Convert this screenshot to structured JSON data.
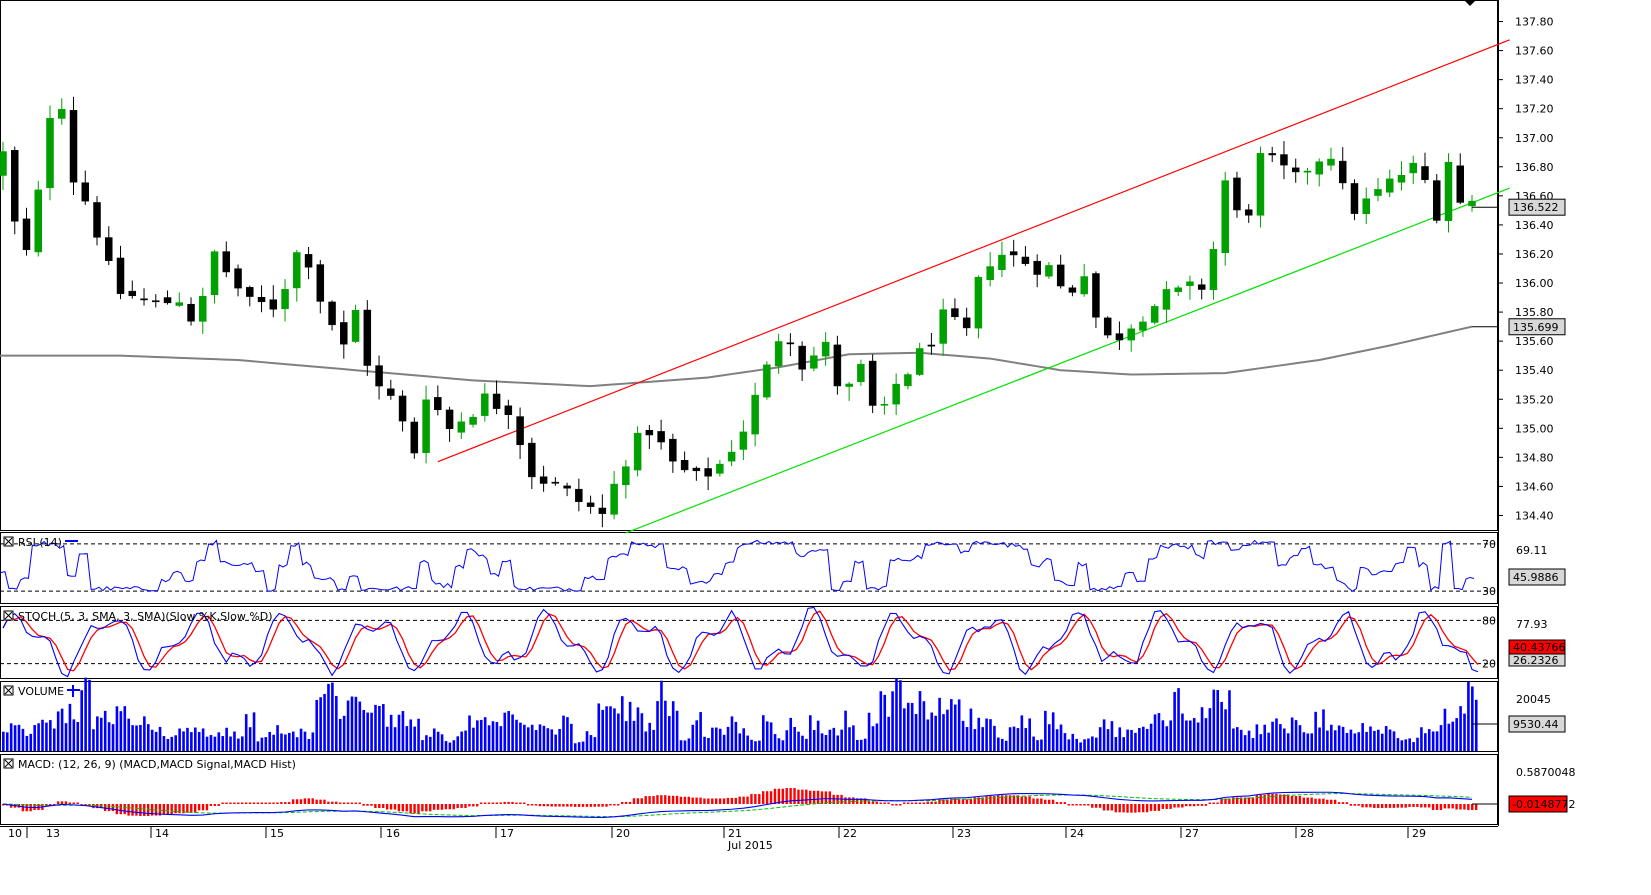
{
  "chart_data": [
    {
      "type": "candlestick",
      "panel": "price",
      "ylim": [
        134.3,
        137.9
      ],
      "y_ticks": [
        "137.80",
        "137.60",
        "137.40",
        "137.20",
        "137.00",
        "136.80",
        "136.60",
        "136.40",
        "136.20",
        "136.00",
        "135.80",
        "135.60",
        "135.40",
        "135.20",
        "135.00",
        "134.80",
        "134.60",
        "134.40"
      ],
      "x_day_labels": [
        "10",
        "13",
        "14",
        "15",
        "16",
        "17",
        "20",
        "21",
        "22",
        "23",
        "24",
        "27",
        "28",
        "29"
      ],
      "x_month_label": "Jul 2015",
      "last_price_label": "136.522",
      "ma_label": "135.699",
      "anchors": [
        {
          "t": 0,
          "v": 136.75
        },
        {
          "t": 1.5,
          "v": 136.95
        },
        {
          "t": 2.5,
          "v": 135.85
        },
        {
          "t": 3.5,
          "v": 136.55
        },
        {
          "t": 4.5,
          "v": 136.65
        },
        {
          "t": 5.5,
          "v": 137.7
        },
        {
          "t": 6.5,
          "v": 136.8
        },
        {
          "t": 8.5,
          "v": 136.5
        },
        {
          "t": 10.5,
          "v": 135.95
        },
        {
          "t": 14,
          "v": 135.85
        },
        {
          "t": 16,
          "v": 135.9
        },
        {
          "t": 17.5,
          "v": 135.7
        },
        {
          "t": 19,
          "v": 136.2
        },
        {
          "t": 22,
          "v": 135.85
        },
        {
          "t": 24,
          "v": 135.85
        },
        {
          "t": 25,
          "v": 136.0
        },
        {
          "t": 26.5,
          "v": 136.3
        },
        {
          "t": 28,
          "v": 135.9
        },
        {
          "t": 30,
          "v": 135.55
        },
        {
          "t": 31,
          "v": 135.8
        },
        {
          "t": 32.5,
          "v": 135.3
        },
        {
          "t": 34,
          "v": 135.2
        },
        {
          "t": 36,
          "v": 134.85
        },
        {
          "t": 37,
          "v": 135.25
        },
        {
          "t": 39,
          "v": 135.0
        },
        {
          "t": 42,
          "v": 135.2
        },
        {
          "t": 44,
          "v": 135.15
        },
        {
          "t": 46,
          "v": 134.7
        },
        {
          "t": 48,
          "v": 134.6
        },
        {
          "t": 50,
          "v": 134.5
        },
        {
          "t": 52,
          "v": 134.4
        },
        {
          "t": 54,
          "v": 134.8
        },
        {
          "t": 56,
          "v": 135.0
        },
        {
          "t": 58,
          "v": 134.75
        },
        {
          "t": 60,
          "v": 134.65
        },
        {
          "t": 62,
          "v": 134.75
        },
        {
          "t": 64,
          "v": 135.0
        },
        {
          "t": 66,
          "v": 135.4
        },
        {
          "t": 67.5,
          "v": 135.75
        },
        {
          "t": 69,
          "v": 135.45
        },
        {
          "t": 71,
          "v": 135.55
        },
        {
          "t": 72.5,
          "v": 135.2
        },
        {
          "t": 74,
          "v": 135.4
        },
        {
          "t": 75.5,
          "v": 135.0
        },
        {
          "t": 77,
          "v": 135.3
        },
        {
          "t": 79,
          "v": 135.5
        },
        {
          "t": 81,
          "v": 135.75
        },
        {
          "t": 83,
          "v": 135.65
        },
        {
          "t": 84.5,
          "v": 136.15
        },
        {
          "t": 86,
          "v": 136.2
        },
        {
          "t": 88,
          "v": 136.15
        },
        {
          "t": 90,
          "v": 136.1
        },
        {
          "t": 91.5,
          "v": 135.9
        },
        {
          "t": 93,
          "v": 136.1
        },
        {
          "t": 94.5,
          "v": 135.6
        },
        {
          "t": 96,
          "v": 135.65
        },
        {
          "t": 98,
          "v": 135.8
        },
        {
          "t": 100,
          "v": 135.9
        },
        {
          "t": 102,
          "v": 135.95
        },
        {
          "t": 103.5,
          "v": 136.0
        },
        {
          "t": 105,
          "v": 136.7
        },
        {
          "t": 106.5,
          "v": 136.35
        },
        {
          "t": 108,
          "v": 136.85
        },
        {
          "t": 109.5,
          "v": 136.8
        },
        {
          "t": 111,
          "v": 136.7
        },
        {
          "t": 112.5,
          "v": 136.85
        },
        {
          "t": 114,
          "v": 136.9
        },
        {
          "t": 115.5,
          "v": 136.5
        },
        {
          "t": 117,
          "v": 136.55
        },
        {
          "t": 118.5,
          "v": 136.65
        },
        {
          "t": 120,
          "v": 136.75
        },
        {
          "t": 121.5,
          "v": 136.8
        },
        {
          "t": 123,
          "v": 136.5
        },
        {
          "t": 124,
          "v": 136.85
        },
        {
          "t": 125,
          "v": 136.55
        }
      ],
      "ma_anchors": [
        {
          "t": 0,
          "v": 135.5
        },
        {
          "t": 10,
          "v": 135.5
        },
        {
          "t": 20,
          "v": 135.47
        },
        {
          "t": 30,
          "v": 135.4
        },
        {
          "t": 40,
          "v": 135.33
        },
        {
          "t": 50,
          "v": 135.29
        },
        {
          "t": 60,
          "v": 135.35
        },
        {
          "t": 66,
          "v": 135.42
        },
        {
          "t": 72,
          "v": 135.51
        },
        {
          "t": 78,
          "v": 135.52
        },
        {
          "t": 84,
          "v": 135.48
        },
        {
          "t": 90,
          "v": 135.4
        },
        {
          "t": 96,
          "v": 135.37
        },
        {
          "t": 104,
          "v": 135.38
        },
        {
          "t": 112,
          "v": 135.47
        },
        {
          "t": 118,
          "v": 135.57
        },
        {
          "t": 125,
          "v": 135.7
        }
      ],
      "trendlines": [
        {
          "name": "channel-top",
          "color": "#ff0000",
          "from": {
            "t": 37,
            "v": 134.77
          },
          "to": {
            "t": 126.5,
            "v": 137.62
          }
        },
        {
          "name": "channel-bottom",
          "color": "#00e000",
          "from": {
            "t": 53,
            "v": 134.28
          },
          "to": {
            "t": 126.5,
            "v": 136.6
          }
        }
      ]
    },
    {
      "type": "line",
      "panel": "rsi",
      "title": "RSI (14)",
      "levels": [
        "70",
        "30"
      ],
      "value_label": "69.11",
      "last_label": "45.9886",
      "ylim": [
        20,
        80
      ],
      "color": "#0000ff"
    },
    {
      "type": "line",
      "panel": "stoch",
      "title": "STOCH (5, 3, SMA, 3, SMA)",
      "legend": [
        {
          "name": "Slow %K",
          "color": "#0000ff"
        },
        {
          "name": "Slow %D",
          "color": "#ff0000"
        }
      ],
      "levels": [
        "80",
        "20"
      ],
      "value_label": "77.93",
      "last_label_k": "40.43766",
      "last_label_d": "26.2326",
      "ylim": [
        0,
        100
      ]
    },
    {
      "type": "bar",
      "panel": "volume",
      "title": "VOLUME",
      "value_label": "20045",
      "last_label": "9530.44",
      "color": "#0000ff"
    },
    {
      "type": "line",
      "panel": "macd",
      "title": "MACD: (12, 26, 9)",
      "legend": [
        {
          "name": "MACD",
          "color": "#0000ff"
        },
        {
          "name": "MACD Signal",
          "color": "#00c000"
        },
        {
          "name": "MACD Hist",
          "color": "#ff0000"
        }
      ],
      "value_label": "0.5870048",
      "last_label": "-0.0148772"
    }
  ],
  "colors": {
    "bull": "#00a000",
    "bear": "#000000",
    "ma": "#808080",
    "label_box": "#d8d8d8",
    "last_label_red": "#ff0000",
    "last_label_blue": "#0000ff"
  }
}
